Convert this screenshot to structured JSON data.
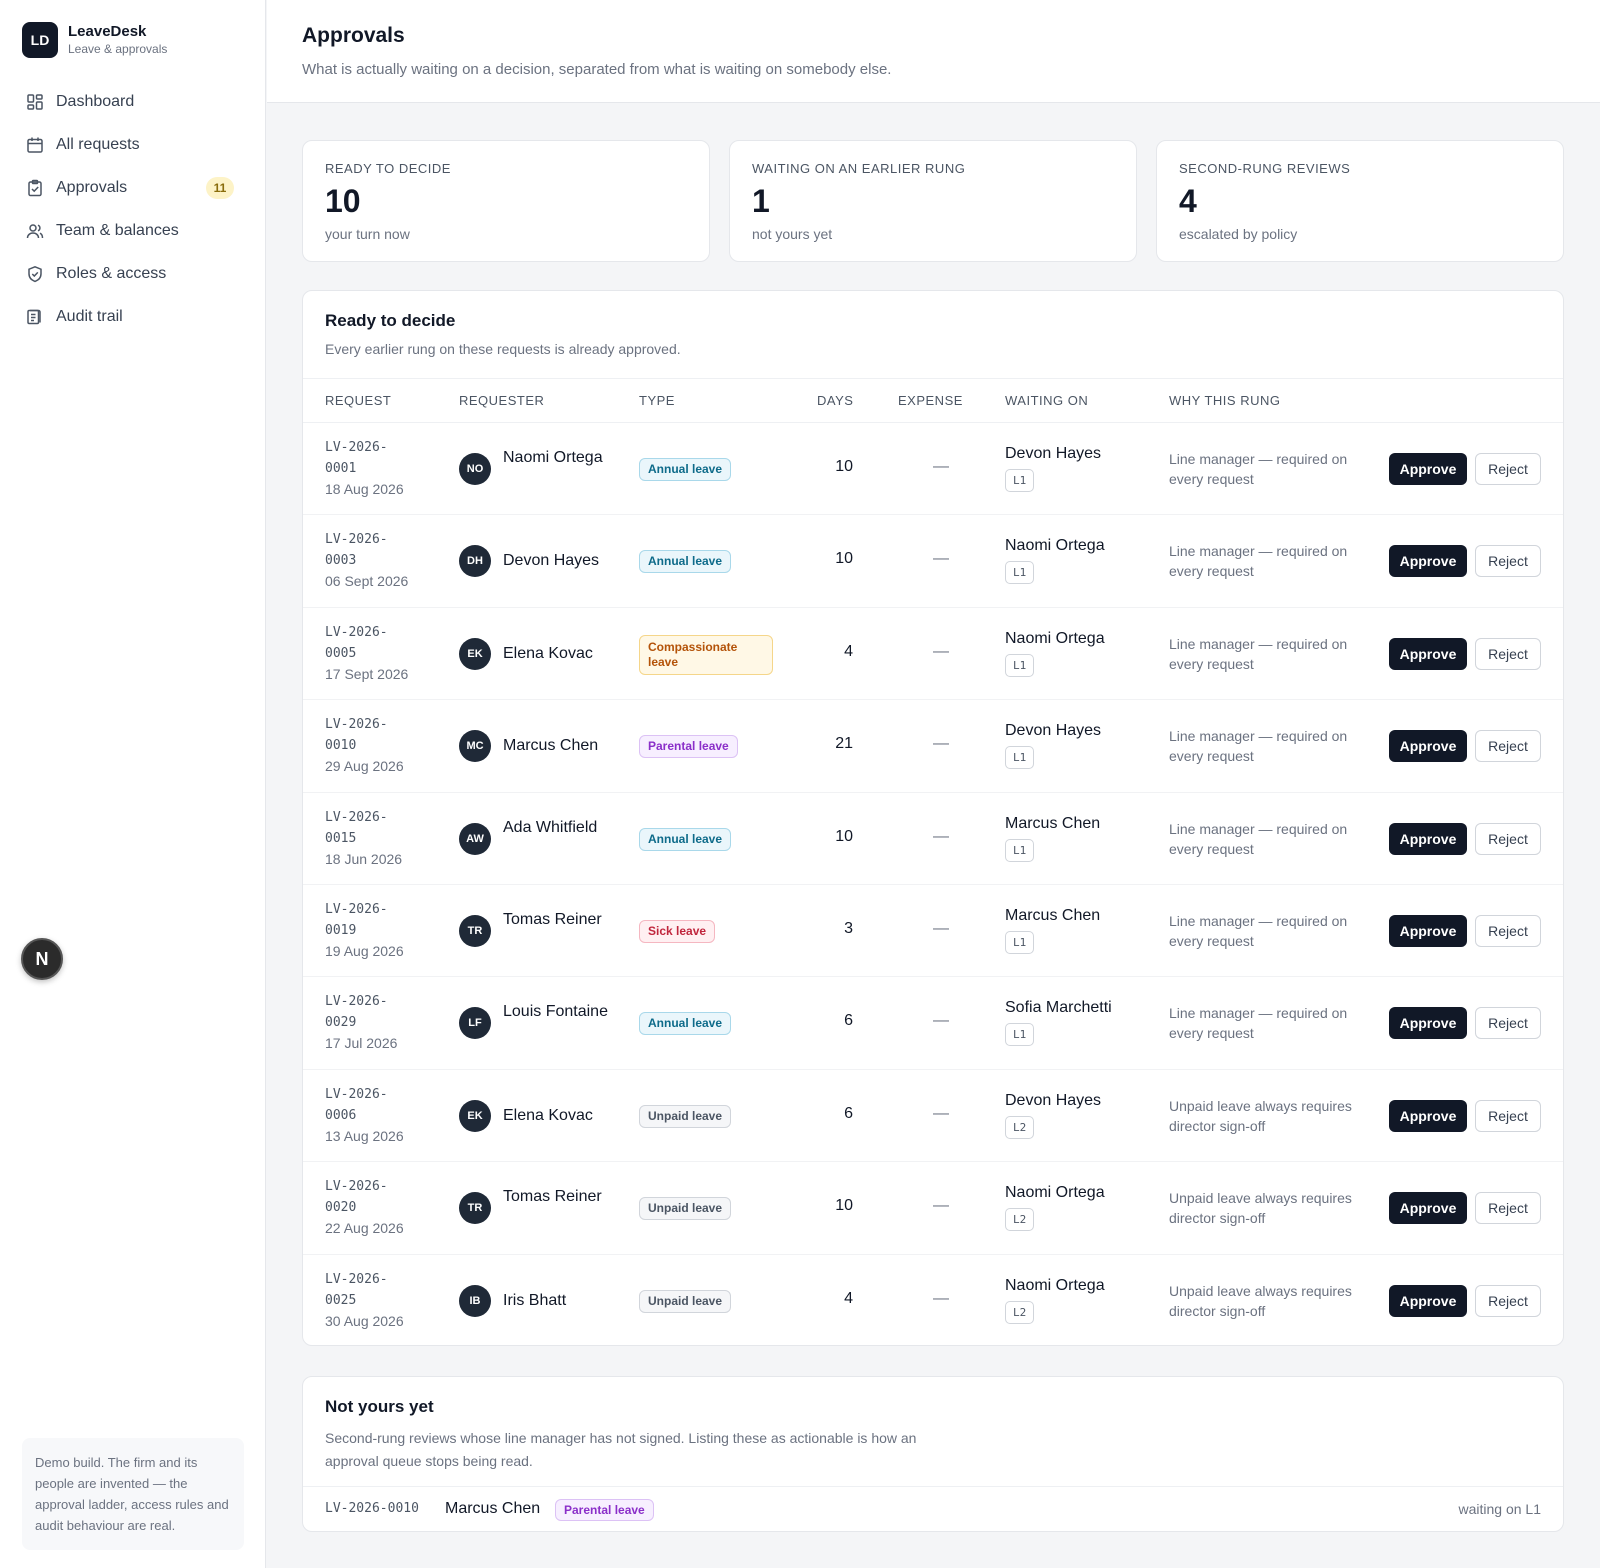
{
  "brand": {
    "logo": "LD",
    "name": "LeaveDesk",
    "subtitle": "Leave & approvals"
  },
  "nav": [
    {
      "label": "Dashboard",
      "icon": "dashboard-icon"
    },
    {
      "label": "All requests",
      "icon": "calendar-icon"
    },
    {
      "label": "Approvals",
      "icon": "clipboard-check-icon",
      "badge": "11"
    },
    {
      "label": "Team & balances",
      "icon": "users-icon"
    },
    {
      "label": "Roles & access",
      "icon": "shield-icon"
    },
    {
      "label": "Audit trail",
      "icon": "ledger-icon"
    }
  ],
  "demo_note": "Demo build. The firm and its people are invented — the approval ladder, access rules and audit behaviour are real.",
  "fab_label": "N",
  "header": {
    "title": "Approvals",
    "subtitle": "What is actually waiting on a decision, separated from what is waiting on somebody else."
  },
  "stats": [
    {
      "label": "READY TO DECIDE",
      "value": "10",
      "note": "your turn now"
    },
    {
      "label": "WAITING ON AN EARLIER RUNG",
      "value": "1",
      "note": "not yours yet"
    },
    {
      "label": "SECOND-RUNG REVIEWS",
      "value": "4",
      "note": "escalated by policy"
    }
  ],
  "ready": {
    "title": "Ready to decide",
    "subtitle": "Every earlier rung on these requests is already approved.",
    "columns": {
      "request": "REQUEST",
      "requester": "REQUESTER",
      "type": "TYPE",
      "days": "DAYS",
      "expense": "EXPENSE",
      "waiting": "WAITING ON",
      "why": "WHY THIS RUNG"
    },
    "approve_label": "Approve",
    "reject_label": "Reject",
    "rows": [
      {
        "id1": "LV-2026-",
        "id2": "0001",
        "date": "18 Aug 2026",
        "initials": "NO",
        "name": "Naomi Ortega",
        "type": "Annual leave",
        "type_kind": "annual",
        "days": "10",
        "expense": "—",
        "waiting": "Devon Hayes",
        "rung": "L1",
        "why": "Line manager — required on every request"
      },
      {
        "id1": "LV-2026-",
        "id2": "0003",
        "date": "06 Sept 2026",
        "initials": "DH",
        "name": "Devon Hayes",
        "type": "Annual leave",
        "type_kind": "annual",
        "days": "10",
        "expense": "—",
        "waiting": "Naomi Ortega",
        "rung": "L1",
        "why": "Line manager — required on every request"
      },
      {
        "id1": "LV-2026-",
        "id2": "0005",
        "date": "17 Sept 2026",
        "initials": "EK",
        "name": "Elena Kovac",
        "type": "Compassionate leave",
        "type_kind": "compassionate",
        "days": "4",
        "expense": "—",
        "waiting": "Naomi Ortega",
        "rung": "L1",
        "why": "Line manager — required on every request"
      },
      {
        "id1": "LV-2026-",
        "id2": "0010",
        "date": "29 Aug 2026",
        "initials": "MC",
        "name": "Marcus Chen",
        "type": "Parental leave",
        "type_kind": "parental",
        "days": "21",
        "expense": "—",
        "waiting": "Devon Hayes",
        "rung": "L1",
        "why": "Line manager — required on every request"
      },
      {
        "id1": "LV-2026-",
        "id2": "0015",
        "date": "18 Jun 2026",
        "initials": "AW",
        "name": "Ada Whitfield",
        "type": "Annual leave",
        "type_kind": "annual",
        "days": "10",
        "expense": "—",
        "waiting": "Marcus Chen",
        "rung": "L1",
        "why": "Line manager — required on every request"
      },
      {
        "id1": "LV-2026-",
        "id2": "0019",
        "date": "19 Aug 2026",
        "initials": "TR",
        "name": "Tomas Reiner",
        "type": "Sick leave",
        "type_kind": "sick",
        "days": "3",
        "expense": "—",
        "waiting": "Marcus Chen",
        "rung": "L1",
        "why": "Line manager — required on every request"
      },
      {
        "id1": "LV-2026-",
        "id2": "0029",
        "date": "17 Jul 2026",
        "initials": "LF",
        "name": "Louis Fontaine",
        "type": "Annual leave",
        "type_kind": "annual",
        "days": "6",
        "expense": "—",
        "waiting": "Sofia Marchetti",
        "rung": "L1",
        "why": "Line manager — required on every request"
      },
      {
        "id1": "LV-2026-",
        "id2": "0006",
        "date": "13 Aug 2026",
        "initials": "EK",
        "name": "Elena Kovac",
        "type": "Unpaid leave",
        "type_kind": "unpaid",
        "days": "6",
        "expense": "—",
        "waiting": "Devon Hayes",
        "rung": "L2",
        "why": "Unpaid leave always requires director sign-off"
      },
      {
        "id1": "LV-2026-",
        "id2": "0020",
        "date": "22 Aug 2026",
        "initials": "TR",
        "name": "Tomas Reiner",
        "type": "Unpaid leave",
        "type_kind": "unpaid",
        "days": "10",
        "expense": "—",
        "waiting": "Naomi Ortega",
        "rung": "L2",
        "why": "Unpaid leave always requires director sign-off"
      },
      {
        "id1": "LV-2026-",
        "id2": "0025",
        "date": "30 Aug 2026",
        "initials": "IB",
        "name": "Iris Bhatt",
        "type": "Unpaid leave",
        "type_kind": "unpaid",
        "days": "4",
        "expense": "—",
        "waiting": "Naomi Ortega",
        "rung": "L2",
        "why": "Unpaid leave always requires director sign-off"
      }
    ]
  },
  "not_yours": {
    "title": "Not yours yet",
    "subtitle": "Second-rung reviews whose line manager has not signed. Listing these as actionable is how an approval queue stops being read.",
    "rows": [
      {
        "id": "LV-2026-0010",
        "name": "Marcus Chen",
        "type": "Parental leave",
        "type_kind": "parental",
        "waiting": "waiting on L1"
      }
    ]
  },
  "type_colors": {
    "annual": {
      "fg": "#0e6b8a",
      "bg": "#eaf6fb",
      "border": "#a9d8ea"
    },
    "compassionate": {
      "fg": "#b45309",
      "bg": "#fff8e6",
      "border": "#f5d68a"
    },
    "parental": {
      "fg": "#8b2fc9",
      "bg": "#f7efff",
      "border": "#dcc2f5"
    },
    "sick": {
      "fg": "#c0263d",
      "bg": "#fff0f2",
      "border": "#f5b7c1"
    },
    "unpaid": {
      "fg": "#4b5563",
      "bg": "#f5f6f8",
      "border": "#d1d5db"
    }
  }
}
